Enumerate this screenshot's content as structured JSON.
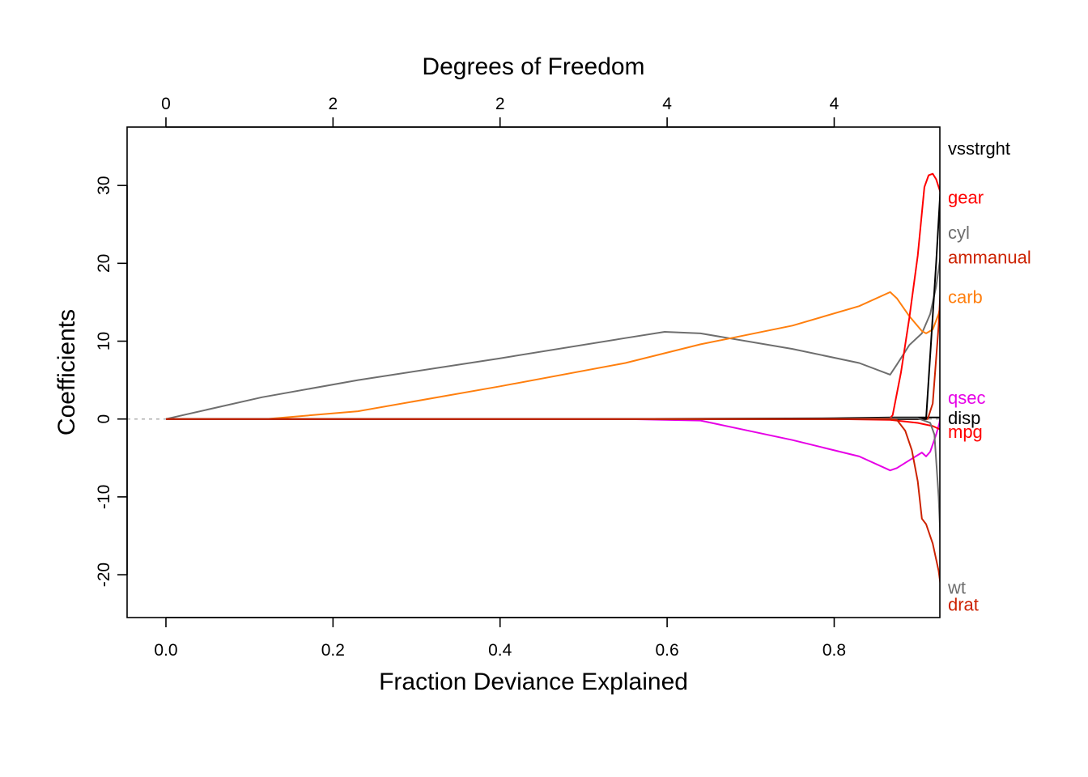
{
  "chart_data": {
    "type": "line",
    "title": "",
    "xlabel": "Fraction Deviance Explained",
    "ylabel": "Coefficients",
    "top_axis_label": "Degrees of Freedom",
    "xlim": [
      -0.0465,
      0.9265
    ],
    "ylim": [
      -25.5,
      37.5
    ],
    "x_ticks": [
      {
        "value": 0.0,
        "label": "0.0"
      },
      {
        "value": 0.2,
        "label": "0.2"
      },
      {
        "value": 0.4,
        "label": "0.4"
      },
      {
        "value": 0.6,
        "label": "0.6"
      },
      {
        "value": 0.8,
        "label": "0.8"
      }
    ],
    "y_ticks": [
      {
        "value": -20,
        "label": "-20"
      },
      {
        "value": -10,
        "label": "-10"
      },
      {
        "value": 0,
        "label": "0"
      },
      {
        "value": 10,
        "label": "10"
      },
      {
        "value": 20,
        "label": "20"
      },
      {
        "value": 30,
        "label": "30"
      }
    ],
    "top_ticks": [
      {
        "value": 0.0,
        "label": "0"
      },
      {
        "value": 0.2,
        "label": "2"
      },
      {
        "value": 0.4,
        "label": "2"
      },
      {
        "value": 0.6,
        "label": "4"
      },
      {
        "value": 0.8,
        "label": "4"
      }
    ],
    "zero_line": true,
    "grid": false,
    "series": [
      {
        "name": "cyl",
        "color": "#6e6e6e",
        "label_y": 24,
        "x": [
          0,
          0.115,
          0.23,
          0.4,
          0.55,
          0.597,
          0.64,
          0.75,
          0.83,
          0.867,
          0.875,
          0.89,
          0.905,
          0.915,
          0.922,
          0.93
        ],
        "y": [
          0,
          2.8,
          5.0,
          7.8,
          10.4,
          11.2,
          11.0,
          9.0,
          7.2,
          5.7,
          7.0,
          9.5,
          11.0,
          13.5,
          17.0,
          23.0
        ]
      },
      {
        "name": "carb",
        "color": "#ff7f0e",
        "label_y": 15.7,
        "x": [
          0,
          0.12,
          0.23,
          0.4,
          0.55,
          0.64,
          0.75,
          0.83,
          0.867,
          0.875,
          0.89,
          0.905,
          0.91,
          0.918,
          0.925,
          0.93
        ],
        "y": [
          0,
          0,
          1.0,
          4.2,
          7.2,
          9.6,
          12.0,
          14.5,
          16.3,
          15.5,
          13.2,
          11.3,
          11.0,
          11.5,
          13.5,
          16.0
        ]
      },
      {
        "name": "qsec",
        "color": "#e600e6",
        "label_y": 2.8,
        "x": [
          0,
          0.55,
          0.64,
          0.75,
          0.83,
          0.867,
          0.875,
          0.89,
          0.905,
          0.91,
          0.915,
          0.922,
          0.926,
          0.93
        ],
        "y": [
          0,
          0,
          -0.2,
          -2.7,
          -4.8,
          -6.6,
          -6.3,
          -5.3,
          -4.3,
          -4.8,
          -4.2,
          -2.0,
          -0.5,
          2.5
        ]
      },
      {
        "name": "disp",
        "color": "#000000",
        "label_y": 0.2,
        "x": [
          0,
          0.5,
          0.8,
          0.87,
          0.91,
          0.93
        ],
        "y": [
          0,
          0,
          0.1,
          0.2,
          0.2,
          0.2
        ]
      },
      {
        "name": "mpg",
        "color": "#ff0000",
        "label_y": -1.6,
        "x": [
          0,
          0.5,
          0.8,
          0.867,
          0.9,
          0.918,
          0.93
        ],
        "y": [
          0,
          0,
          0,
          -0.1,
          -0.5,
          -0.9,
          -1.5
        ]
      },
      {
        "name": "gear",
        "color": "#ff0000",
        "label_y": 28.5,
        "x": [
          0,
          0.8,
          0.866,
          0.87,
          0.88,
          0.89,
          0.9,
          0.908,
          0.913,
          0.918,
          0.922,
          0.926,
          0.93
        ],
        "y": [
          0,
          0,
          0,
          0.5,
          6.0,
          13.0,
          21.0,
          29.8,
          31.3,
          31.5,
          30.8,
          29.5,
          28.0
        ]
      },
      {
        "name": "ammanual",
        "color": "#cc2200",
        "label_y": 20.8,
        "x": [
          0,
          0.8,
          0.912,
          0.918,
          0.925,
          0.93
        ],
        "y": [
          0,
          0,
          0,
          2.0,
          12.0,
          22.5
        ]
      },
      {
        "name": "vsstrght",
        "color": "#000000",
        "label_y": 34.8,
        "x": [
          0,
          0.8,
          0.91,
          0.916,
          0.922,
          0.93
        ],
        "y": [
          0,
          0,
          0,
          10.0,
          20.0,
          34.7
        ]
      },
      {
        "name": "wt",
        "color": "#6e6e6e",
        "label_y": -21.6,
        "x": [
          0,
          0.8,
          0.867,
          0.9,
          0.915,
          0.92,
          0.925,
          0.93
        ],
        "y": [
          0,
          0,
          0.1,
          0.1,
          -0.5,
          -2.0,
          -10.0,
          -22.5
        ]
      },
      {
        "name": "drat",
        "color": "#cc2200",
        "label_y": -23.8,
        "x": [
          0,
          0.8,
          0.867,
          0.875,
          0.885,
          0.893,
          0.9,
          0.905,
          0.91,
          0.918,
          0.925,
          0.93
        ],
        "y": [
          0,
          0,
          0,
          -0.1,
          -1.5,
          -4.0,
          -8.0,
          -12.8,
          -13.5,
          -16.0,
          -19.5,
          -23.5
        ]
      }
    ]
  }
}
